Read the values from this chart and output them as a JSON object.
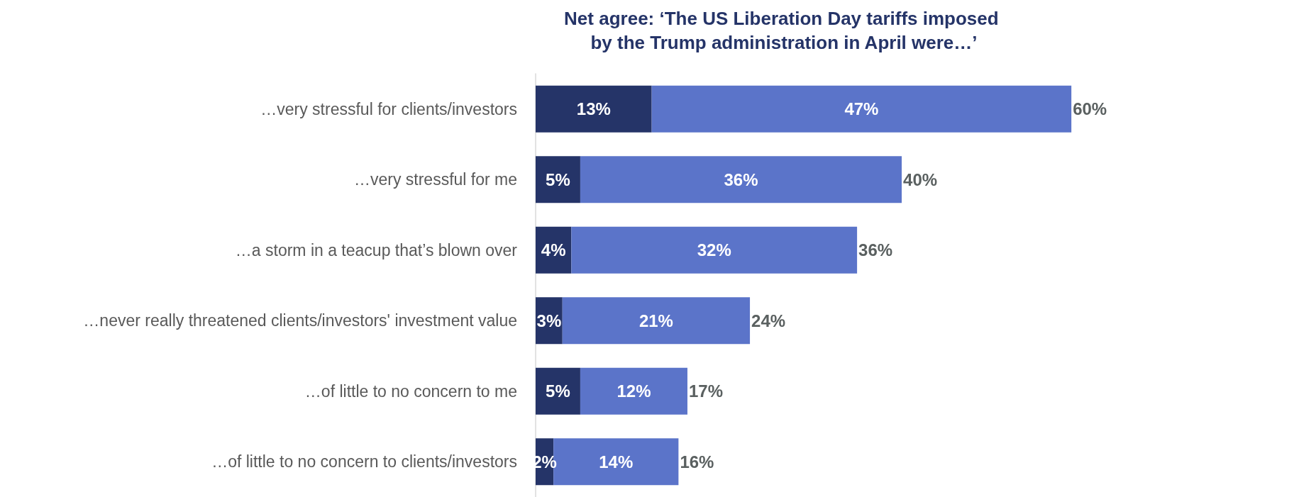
{
  "chart_data": {
    "type": "bar",
    "orientation": "horizontal",
    "stacked": true,
    "title": "Net agree: ‘The US Liberation Day tariffs imposed by the Trump administration in April were…’",
    "categories": [
      "…very stressful for clients/investors",
      "…very stressful for me",
      "…a storm in a teacup that’s blown over",
      "…never really threatened clients/investors' investment value",
      "…of little to no concern to me",
      "…of little to no concern to clients/investors"
    ],
    "series": [
      {
        "color": "#253468",
        "values": [
          13,
          5,
          4,
          3,
          5,
          2
        ],
        "value_labels": [
          "13%",
          "5%",
          "4%",
          "3%",
          "5%",
          "2%"
        ]
      },
      {
        "color": "#5b74c9",
        "values": [
          47,
          36,
          32,
          21,
          12,
          14
        ],
        "value_labels": [
          "47%",
          "36%",
          "32%",
          "21%",
          "12%",
          "14%"
        ]
      }
    ],
    "totals": [
      "60%",
      "40%",
      "36%",
      "24%",
      "17%",
      "16%"
    ]
  }
}
